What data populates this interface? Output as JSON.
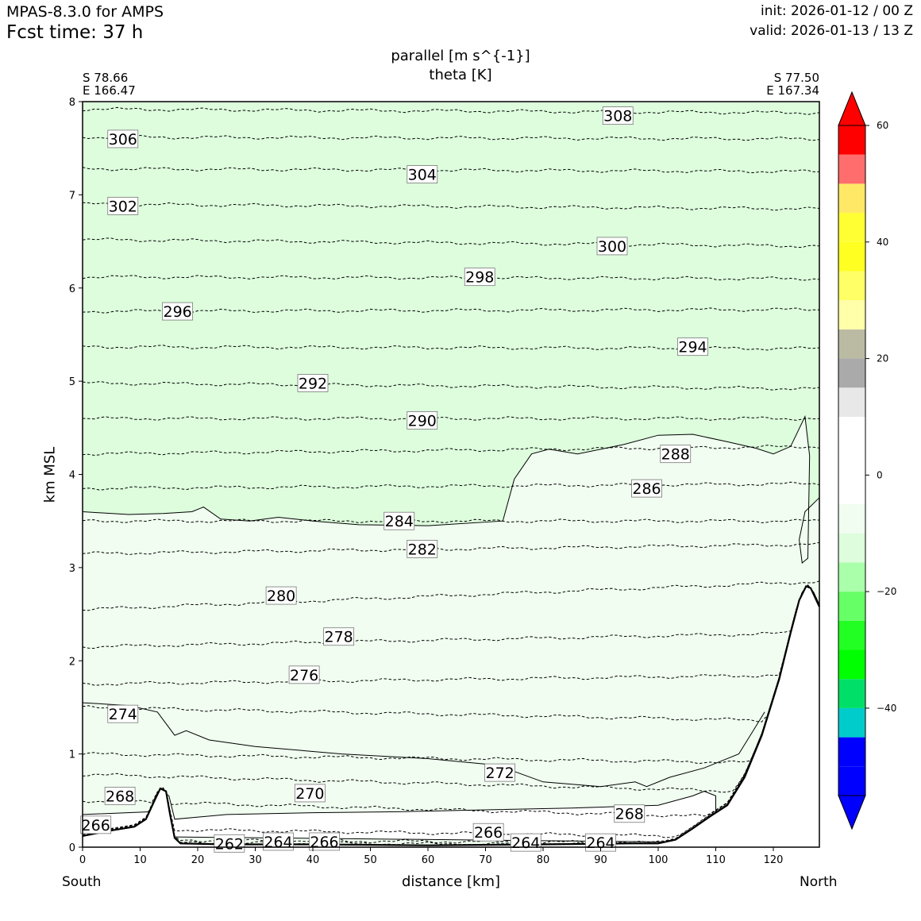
{
  "header": {
    "app": "MPAS-8.3.0 for AMPS",
    "fcst": "Fcst time:   37 h",
    "init": "init: 2026-01-12 / 00 Z",
    "valid": "valid: 2026-01-13 / 13 Z"
  },
  "chart_data": {
    "type": "cross-section contour",
    "title_line1": "parallel [m s^{-1}]",
    "title_line2": "theta [K]",
    "xlabel": "distance [km]",
    "ylabel": "km MSL",
    "xlim": [
      0,
      128
    ],
    "ylim": [
      0,
      8
    ],
    "x_ticks": [
      0,
      10,
      20,
      30,
      40,
      50,
      60,
      70,
      80,
      90,
      100,
      110,
      120
    ],
    "y_ticks": [
      0,
      1,
      2,
      3,
      4,
      5,
      6,
      7,
      8
    ],
    "endpoints": {
      "start": {
        "lat": "S 78.66",
        "lon": "E 166.47",
        "label": "South"
      },
      "end": {
        "lat": "S 77.50",
        "lon": "E 167.34",
        "label": "North"
      }
    },
    "filled_shading": {
      "lt_minus10": "#ddfddd",
      "minus10_to_0": "#f0fdf0",
      "description_bounds": [
        {
          "bound": "lt_minus10_upper_boundary_km",
          "points": [
            [
              0,
              3.6
            ],
            [
              8,
              3.57
            ],
            [
              14,
              3.58
            ],
            [
              19,
              3.6
            ],
            [
              21,
              3.65
            ],
            [
              24,
              3.52
            ],
            [
              29,
              3.5
            ],
            [
              34,
              3.54
            ],
            [
              40,
              3.5
            ],
            [
              48,
              3.46
            ],
            [
              60,
              3.45
            ],
            [
              73,
              3.5
            ],
            [
              75,
              3.95
            ],
            [
              78,
              4.22
            ],
            [
              81,
              4.27
            ],
            [
              86,
              4.22
            ],
            [
              94,
              4.32
            ],
            [
              100,
              4.42
            ],
            [
              106,
              4.43
            ],
            [
              112,
              4.35
            ],
            [
              117,
              4.28
            ],
            [
              120,
              4.22
            ],
            [
              123,
              4.3
            ],
            [
              125.5,
              4.62
            ],
            [
              126.3,
              4.2
            ],
            [
              126,
              3.1
            ],
            [
              125,
              3.05
            ],
            [
              124.5,
              3.3
            ],
            [
              125.5,
              3.6
            ],
            [
              128,
              3.75
            ]
          ]
        }
      ]
    },
    "theta_contours": [
      {
        "level": 262,
        "y0": 0.05,
        "y1": 0.02
      },
      {
        "level": 264,
        "y0": 0.08,
        "y1": 0.04
      },
      {
        "level": 266,
        "y0": 0.2,
        "y1": 0.1
      },
      {
        "level": 268,
        "y0": 0.5,
        "y1": 0.3
      },
      {
        "level": 270,
        "y0": 0.78,
        "y1": 0.58
      },
      {
        "level": 272,
        "y0": 1.0,
        "y1": 0.9
      },
      {
        "level": 274,
        "y0": 1.5,
        "y1": 1.35
      },
      {
        "level": 276,
        "y0": 1.75,
        "y1": 1.85
      },
      {
        "level": 278,
        "y0": 2.15,
        "y1": 2.3
      },
      {
        "level": 280,
        "y0": 2.55,
        "y1": 2.85
      },
      {
        "level": 282,
        "y0": 3.15,
        "y1": 3.25
      },
      {
        "level": 284,
        "y0": 3.5,
        "y1": 3.5
      },
      {
        "level": 286,
        "y0": 3.85,
        "y1": 3.9
      },
      {
        "level": 288,
        "y0": 4.22,
        "y1": 4.3
      },
      {
        "level": 290,
        "y0": 4.6,
        "y1": 4.6
      },
      {
        "level": 292,
        "y0": 4.98,
        "y1": 4.92
      },
      {
        "level": 294,
        "y0": 5.37,
        "y1": 5.35
      },
      {
        "level": 296,
        "y0": 5.75,
        "y1": 5.77
      },
      {
        "level": 298,
        "y0": 6.12,
        "y1": 6.1
      },
      {
        "level": 300,
        "y0": 6.52,
        "y1": 6.45
      },
      {
        "level": 302,
        "y0": 6.9,
        "y1": 6.85
      },
      {
        "level": 304,
        "y0": 7.28,
        "y1": 7.25
      },
      {
        "level": 306,
        "y0": 7.62,
        "y1": 7.6
      },
      {
        "level": 308,
        "y0": 7.92,
        "y1": 7.88
      }
    ],
    "contour_labels": [
      {
        "text": "308",
        "x": 93,
        "y": 7.85
      },
      {
        "text": "306",
        "x": 7,
        "y": 7.6
      },
      {
        "text": "304",
        "x": 59,
        "y": 7.22
      },
      {
        "text": "302",
        "x": 7,
        "y": 6.88
      },
      {
        "text": "300",
        "x": 92,
        "y": 6.45
      },
      {
        "text": "298",
        "x": 69,
        "y": 6.12
      },
      {
        "text": "296",
        "x": 16.5,
        "y": 5.75
      },
      {
        "text": "294",
        "x": 106,
        "y": 5.37
      },
      {
        "text": "292",
        "x": 40,
        "y": 4.98
      },
      {
        "text": "290",
        "x": 59,
        "y": 4.58
      },
      {
        "text": "288",
        "x": 103,
        "y": 4.22
      },
      {
        "text": "286",
        "x": 98,
        "y": 3.85
      },
      {
        "text": "284",
        "x": 55,
        "y": 3.5
      },
      {
        "text": "282",
        "x": 59,
        "y": 3.2
      },
      {
        "text": "280",
        "x": 34.5,
        "y": 2.7
      },
      {
        "text": "278",
        "x": 44.5,
        "y": 2.26
      },
      {
        "text": "276",
        "x": 38.5,
        "y": 1.85
      },
      {
        "text": "274",
        "x": 7,
        "y": 1.43
      },
      {
        "text": "272",
        "x": 72.5,
        "y": 0.8
      },
      {
        "text": "270",
        "x": 39.5,
        "y": 0.58
      },
      {
        "text": "268",
        "x": 6.5,
        "y": 0.55
      },
      {
        "text": "268",
        "x": 95,
        "y": 0.36
      },
      {
        "text": "266",
        "x": 2.3,
        "y": 0.24
      },
      {
        "text": "266",
        "x": 70.5,
        "y": 0.16
      },
      {
        "text": "266",
        "x": 42,
        "y": 0.06
      },
      {
        "text": "264",
        "x": 34,
        "y": 0.06
      },
      {
        "text": "264",
        "x": 77,
        "y": 0.05
      },
      {
        "text": "264",
        "x": 90,
        "y": 0.05
      },
      {
        "text": "262",
        "x": 25.5,
        "y": 0.04
      }
    ],
    "terrain": {
      "points": [
        [
          0,
          0.12
        ],
        [
          5,
          0.18
        ],
        [
          9,
          0.22
        ],
        [
          11,
          0.3
        ],
        [
          12.5,
          0.5
        ],
        [
          13.5,
          0.63
        ],
        [
          14.5,
          0.6
        ],
        [
          15.2,
          0.35
        ],
        [
          16,
          0.1
        ],
        [
          17,
          0.04
        ],
        [
          25,
          0.03
        ],
        [
          40,
          0.03
        ],
        [
          60,
          0.02
        ],
        [
          80,
          0.03
        ],
        [
          95,
          0.04
        ],
        [
          100,
          0.04
        ],
        [
          103,
          0.08
        ],
        [
          106,
          0.2
        ],
        [
          109,
          0.33
        ],
        [
          112,
          0.45
        ],
        [
          115,
          0.75
        ],
        [
          118,
          1.2
        ],
        [
          121,
          1.8
        ],
        [
          123,
          2.3
        ],
        [
          124.5,
          2.65
        ],
        [
          125.7,
          2.8
        ],
        [
          126.5,
          2.78
        ],
        [
          128,
          2.58
        ]
      ]
    },
    "colorbar": {
      "ticks": [
        60,
        40,
        20,
        0,
        -20,
        -40
      ],
      "tick_labels": [
        "60",
        "40",
        "20",
        "0",
        "−20",
        "−40"
      ],
      "levels": [
        -55,
        -50,
        -45,
        -40,
        -35,
        -30,
        -25,
        -20,
        -15,
        -10,
        -5,
        0,
        5,
        10,
        15,
        20,
        25,
        30,
        35,
        40,
        45,
        50,
        55,
        60
      ],
      "colors": [
        "#0000ff",
        "#0000ff",
        "#00cccc",
        "#00e068",
        "#00ff00",
        "#22ff22",
        "#66ff66",
        "#aaffaa",
        "#ddfddd",
        "#f0fdf0",
        "#ffffff",
        "#ffffff",
        "#ffffff",
        "#e8e8e8",
        "#aaaaaa",
        "#bbbba4",
        "#ffffaa",
        "#ffff66",
        "#ffff22",
        "#ffff33",
        "#ffe866",
        "#ff6d6d",
        "#ff0000",
        "#ff0000"
      ],
      "extend_low": "#0000ff",
      "extend_high": "#ff0000"
    }
  }
}
